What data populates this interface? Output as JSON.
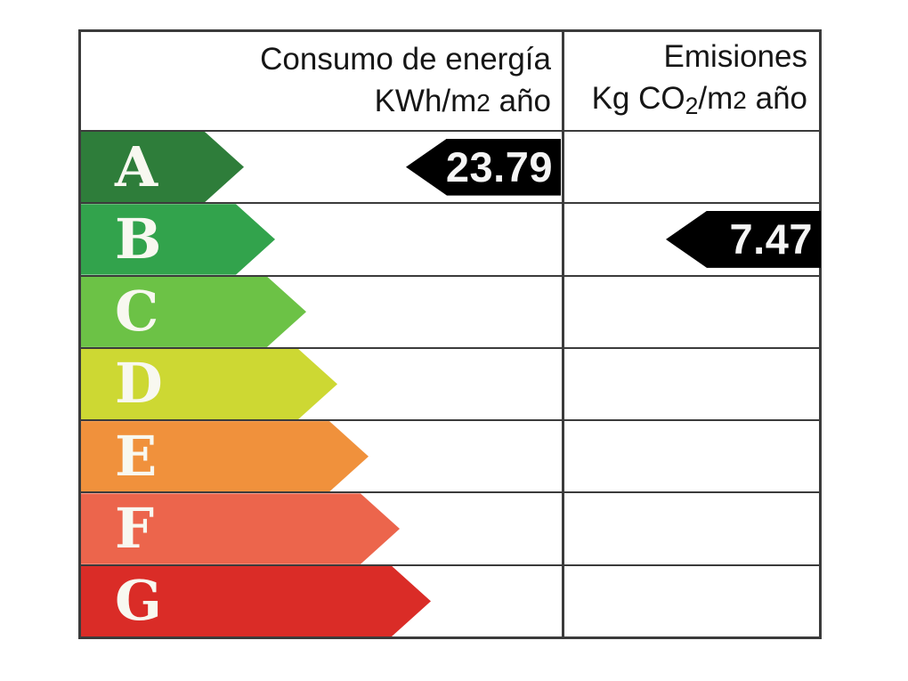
{
  "header": {
    "consumo_line1": "Consumo de energía",
    "consumo_line2_main": "KWh/m",
    "consumo_line2_exp": "2",
    "consumo_line2_tail": " año",
    "emisiones_line1": "Emisiones",
    "emisiones_line2_kg": "Kg CO",
    "emisiones_line2_sub": "2",
    "emisiones_line2_mid": "/m",
    "emisiones_line2_exp": "2",
    "emisiones_line2_tail": " año"
  },
  "ratings": [
    {
      "letter": "A",
      "color": "#2e7d3a",
      "arrow_width": 183
    },
    {
      "letter": "B",
      "color": "#32a34c",
      "arrow_width": 218
    },
    {
      "letter": "C",
      "color": "#6cc246",
      "arrow_width": 253
    },
    {
      "letter": "D",
      "color": "#cdd833",
      "arrow_width": 288
    },
    {
      "letter": "E",
      "color": "#f0913c",
      "arrow_width": 323
    },
    {
      "letter": "F",
      "color": "#ec654c",
      "arrow_width": 358
    },
    {
      "letter": "G",
      "color": "#da2c27",
      "arrow_width": 393
    }
  ],
  "values": {
    "consumo": {
      "text": "23.79",
      "rating_row": "A"
    },
    "emisiones": {
      "text": "7.47",
      "rating_row": "B"
    }
  },
  "colors": {
    "grid": "#3b3b3b",
    "value_arrow_bg": "#000000",
    "value_arrow_text": "#ffffff",
    "letter_text": "#ffffff"
  },
  "chart_data": {
    "type": "bar",
    "title": "Etiqueta de eficiencia energética",
    "categories": [
      "A",
      "B",
      "C",
      "D",
      "E",
      "F",
      "G"
    ],
    "bar_colors": [
      "#2e7d3a",
      "#32a34c",
      "#6cc246",
      "#cdd833",
      "#f0913c",
      "#ec654c",
      "#da2c27"
    ],
    "columns": [
      "Consumo de energía KWh/m2 año",
      "Emisiones Kg CO2/m2 año"
    ],
    "series": [
      {
        "name": "Consumo de energía KWh/m2 año",
        "rating": "A",
        "value": 23.79
      },
      {
        "name": "Emisiones Kg CO2/m2 año",
        "rating": "B",
        "value": 7.47
      }
    ],
    "legend_position": "none",
    "grid": true
  }
}
